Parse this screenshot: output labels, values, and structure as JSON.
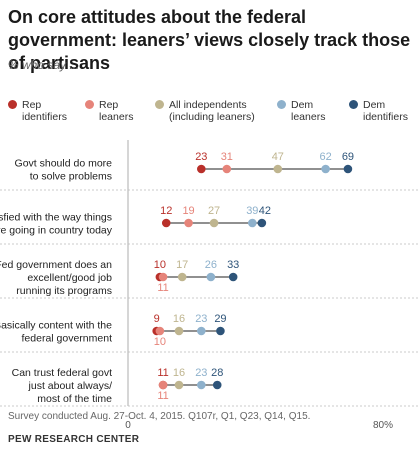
{
  "title": "On core attitudes about the federal government: leaners’ views closely track those of partisans",
  "subtitle": "% who say ...",
  "colors": {
    "rep_identifiers": "#b9302a",
    "rep_leaners": "#e6847a",
    "independents": "#bfb58f",
    "dem_leaners": "#8eb1cc",
    "dem_identifiers": "#2e5479",
    "divider": "#bbbbbb",
    "connector": "#222222"
  },
  "chart_data": {
    "type": "dot-plot",
    "xlim": [
      0,
      80
    ],
    "x_ticks": [
      {
        "value": 0,
        "label": "0"
      },
      {
        "value": 80,
        "label": "80%"
      }
    ],
    "series": [
      {
        "key": "rep_identifiers",
        "name": "Rep identifiers",
        "label_lines": [
          "Rep",
          "identifiers"
        ]
      },
      {
        "key": "rep_leaners",
        "name": "Rep leaners",
        "label_lines": [
          "Rep",
          "leaners"
        ]
      },
      {
        "key": "independents",
        "name": "All independents (including leaners)",
        "label_lines": [
          "All independents",
          "(including leaners)"
        ]
      },
      {
        "key": "dem_leaners",
        "name": "Dem leaners",
        "label_lines": [
          "Dem",
          "leaners"
        ]
      },
      {
        "key": "dem_identifiers",
        "name": "Dem identifiers",
        "label_lines": [
          "Dem",
          "identifiers"
        ]
      }
    ],
    "rows": [
      {
        "label_lines": [
          "Govt should do more",
          "to solve problems"
        ],
        "values": {
          "rep_identifiers": 23,
          "rep_leaners": 31,
          "independents": 47,
          "dem_leaners": 62,
          "dem_identifiers": 69
        }
      },
      {
        "label_lines": [
          "Satisfied with the way things",
          "are going in country today"
        ],
        "values": {
          "rep_identifiers": 12,
          "rep_leaners": 19,
          "independents": 27,
          "dem_leaners": 39,
          "dem_identifiers": 42
        }
      },
      {
        "label_lines": [
          "Fed government does an",
          "excellent/good job",
          "running its programs"
        ],
        "values": {
          "rep_identifiers": 10,
          "rep_leaners": 11,
          "independents": 17,
          "dem_leaners": 26,
          "dem_identifiers": 33
        }
      },
      {
        "label_lines": [
          "Basically content with the",
          "federal government"
        ],
        "values": {
          "rep_identifiers": 9,
          "rep_leaners": 10,
          "independents": 16,
          "dem_leaners": 23,
          "dem_identifiers": 29
        }
      },
      {
        "label_lines": [
          "Can trust federal govt",
          "just about always/",
          "most of the time"
        ],
        "values": {
          "rep_identifiers": 11,
          "rep_leaners": 11,
          "independents": 16,
          "dem_leaners": 23,
          "dem_identifiers": 28
        }
      }
    ]
  },
  "source": "Survey conducted Aug. 27-Oct. 4, 2015. Q107r, Q1, Q23, Q14, Q15.",
  "brand": "PEW RESEARCH CENTER"
}
